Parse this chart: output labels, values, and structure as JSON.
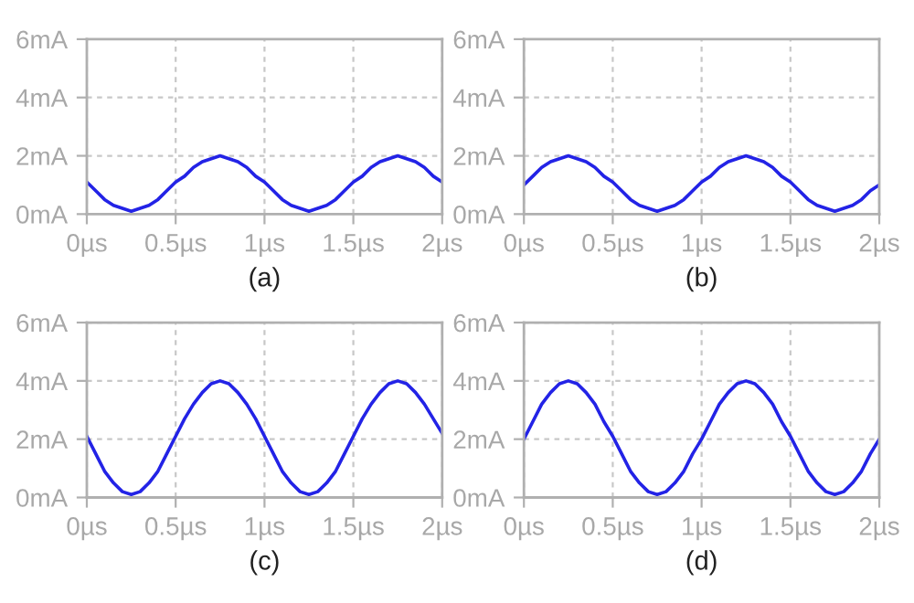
{
  "chart_data": [
    {
      "type": "line",
      "xlabel": "(a)",
      "x": [
        0,
        0.05,
        0.1,
        0.15,
        0.2,
        0.25,
        0.3,
        0.35,
        0.4,
        0.45,
        0.5,
        0.55,
        0.6,
        0.65,
        0.7,
        0.75,
        0.8,
        0.85,
        0.9,
        0.95,
        1,
        1.05,
        1.1,
        1.15,
        1.2,
        1.25,
        1.3,
        1.35,
        1.4,
        1.45,
        1.5,
        1.55,
        1.6,
        1.65,
        1.7,
        1.75,
        1.8,
        1.85,
        1.9,
        1.95,
        2
      ],
      "series": [
        {
          "color": "#2323e6",
          "values": [
            1.1,
            0.8,
            0.5,
            0.3,
            0.2,
            0.1,
            0.2,
            0.3,
            0.5,
            0.8,
            1.1,
            1.3,
            1.6,
            1.8,
            1.9,
            2.0,
            1.9,
            1.8,
            1.6,
            1.3,
            1.1,
            0.8,
            0.5,
            0.3,
            0.2,
            0.1,
            0.2,
            0.3,
            0.5,
            0.8,
            1.1,
            1.3,
            1.6,
            1.8,
            1.9,
            2.0,
            1.9,
            1.8,
            1.6,
            1.3,
            1.1
          ]
        }
      ],
      "xlim": [
        0,
        2
      ],
      "ylim": [
        0,
        6
      ],
      "xticks": [
        {
          "value": 0,
          "label": "0µs"
        },
        {
          "value": 0.5,
          "label": "0.5µs"
        },
        {
          "value": 1,
          "label": "1µs"
        },
        {
          "value": 1.5,
          "label": "1.5µs"
        },
        {
          "value": 2,
          "label": "2µs"
        }
      ],
      "yticks": [
        {
          "value": 0,
          "label": "0mA"
        },
        {
          "value": 2,
          "label": "2mA"
        },
        {
          "value": 4,
          "label": "4mA"
        },
        {
          "value": 6,
          "label": "6mA"
        }
      ],
      "grid": true
    },
    {
      "type": "line",
      "xlabel": "(b)",
      "x": [
        0,
        0.05,
        0.1,
        0.15,
        0.2,
        0.25,
        0.3,
        0.35,
        0.4,
        0.45,
        0.5,
        0.55,
        0.6,
        0.65,
        0.7,
        0.75,
        0.8,
        0.85,
        0.9,
        0.95,
        1,
        1.05,
        1.1,
        1.15,
        1.2,
        1.25,
        1.3,
        1.35,
        1.4,
        1.45,
        1.5,
        1.55,
        1.6,
        1.65,
        1.7,
        1.75,
        1.8,
        1.85,
        1.9,
        1.95,
        2
      ],
      "series": [
        {
          "color": "#2323e6",
          "values": [
            1.0,
            1.3,
            1.6,
            1.8,
            1.9,
            2.0,
            1.9,
            1.8,
            1.6,
            1.3,
            1.1,
            0.8,
            0.5,
            0.3,
            0.2,
            0.1,
            0.2,
            0.3,
            0.5,
            0.8,
            1.1,
            1.3,
            1.6,
            1.8,
            1.9,
            2.0,
            1.9,
            1.8,
            1.6,
            1.3,
            1.1,
            0.8,
            0.5,
            0.3,
            0.2,
            0.1,
            0.2,
            0.3,
            0.5,
            0.8,
            1.0
          ]
        }
      ],
      "xlim": [
        0,
        2
      ],
      "ylim": [
        0,
        6
      ],
      "xticks": [
        {
          "value": 0,
          "label": "0µs"
        },
        {
          "value": 0.5,
          "label": "0.5µs"
        },
        {
          "value": 1,
          "label": "1µs"
        },
        {
          "value": 1.5,
          "label": "1.5µs"
        },
        {
          "value": 2,
          "label": "2µs"
        }
      ],
      "yticks": [
        {
          "value": 0,
          "label": "0mA"
        },
        {
          "value": 2,
          "label": "2mA"
        },
        {
          "value": 4,
          "label": "4mA"
        },
        {
          "value": 6,
          "label": "6mA"
        }
      ],
      "grid": true
    },
    {
      "type": "line",
      "xlabel": "(c)",
      "x": [
        0,
        0.05,
        0.1,
        0.15,
        0.2,
        0.25,
        0.3,
        0.35,
        0.4,
        0.45,
        0.5,
        0.55,
        0.6,
        0.65,
        0.7,
        0.75,
        0.8,
        0.85,
        0.9,
        0.95,
        1,
        1.05,
        1.1,
        1.15,
        1.2,
        1.25,
        1.3,
        1.35,
        1.4,
        1.45,
        1.5,
        1.55,
        1.6,
        1.65,
        1.7,
        1.75,
        1.8,
        1.85,
        1.9,
        1.95,
        2
      ],
      "series": [
        {
          "color": "#2323e6",
          "values": [
            2.1,
            1.5,
            0.9,
            0.5,
            0.2,
            0.1,
            0.2,
            0.5,
            0.9,
            1.5,
            2.1,
            2.7,
            3.2,
            3.6,
            3.9,
            4.0,
            3.9,
            3.6,
            3.2,
            2.7,
            2.1,
            1.5,
            0.9,
            0.5,
            0.2,
            0.1,
            0.2,
            0.5,
            0.9,
            1.5,
            2.1,
            2.7,
            3.2,
            3.6,
            3.9,
            4.0,
            3.9,
            3.6,
            3.2,
            2.7,
            2.2
          ]
        }
      ],
      "xlim": [
        0,
        2
      ],
      "ylim": [
        0,
        6
      ],
      "xticks": [
        {
          "value": 0,
          "label": "0µs"
        },
        {
          "value": 0.5,
          "label": "0.5µs"
        },
        {
          "value": 1,
          "label": "1µs"
        },
        {
          "value": 1.5,
          "label": "1.5µs"
        },
        {
          "value": 2,
          "label": "2µs"
        }
      ],
      "yticks": [
        {
          "value": 0,
          "label": "0mA"
        },
        {
          "value": 2,
          "label": "2mA"
        },
        {
          "value": 4,
          "label": "4mA"
        },
        {
          "value": 6,
          "label": "6mA"
        }
      ],
      "grid": true
    },
    {
      "type": "line",
      "xlabel": "(d)",
      "x": [
        0,
        0.05,
        0.1,
        0.15,
        0.2,
        0.25,
        0.3,
        0.35,
        0.4,
        0.45,
        0.5,
        0.55,
        0.6,
        0.65,
        0.7,
        0.75,
        0.8,
        0.85,
        0.9,
        0.95,
        1,
        1.05,
        1.1,
        1.15,
        1.2,
        1.25,
        1.3,
        1.35,
        1.4,
        1.45,
        1.5,
        1.55,
        1.6,
        1.65,
        1.7,
        1.75,
        1.8,
        1.85,
        1.9,
        1.95,
        2
      ],
      "series": [
        {
          "color": "#2323e6",
          "values": [
            2.0,
            2.6,
            3.2,
            3.6,
            3.9,
            4.0,
            3.9,
            3.6,
            3.2,
            2.6,
            2.1,
            1.5,
            0.9,
            0.5,
            0.2,
            0.1,
            0.2,
            0.5,
            0.9,
            1.5,
            2.0,
            2.6,
            3.2,
            3.6,
            3.9,
            4.0,
            3.9,
            3.6,
            3.2,
            2.6,
            2.1,
            1.5,
            0.9,
            0.5,
            0.2,
            0.1,
            0.2,
            0.5,
            0.9,
            1.5,
            2.0
          ]
        }
      ],
      "xlim": [
        0,
        2
      ],
      "ylim": [
        0,
        6
      ],
      "xticks": [
        {
          "value": 0,
          "label": "0µs"
        },
        {
          "value": 0.5,
          "label": "0.5µs"
        },
        {
          "value": 1,
          "label": "1µs"
        },
        {
          "value": 1.5,
          "label": "1.5µs"
        },
        {
          "value": 2,
          "label": "2µs"
        }
      ],
      "yticks": [
        {
          "value": 0,
          "label": "0mA"
        },
        {
          "value": 2,
          "label": "2mA"
        },
        {
          "value": 4,
          "label": "4mA"
        },
        {
          "value": 6,
          "label": "6mA"
        }
      ],
      "grid": true
    }
  ]
}
